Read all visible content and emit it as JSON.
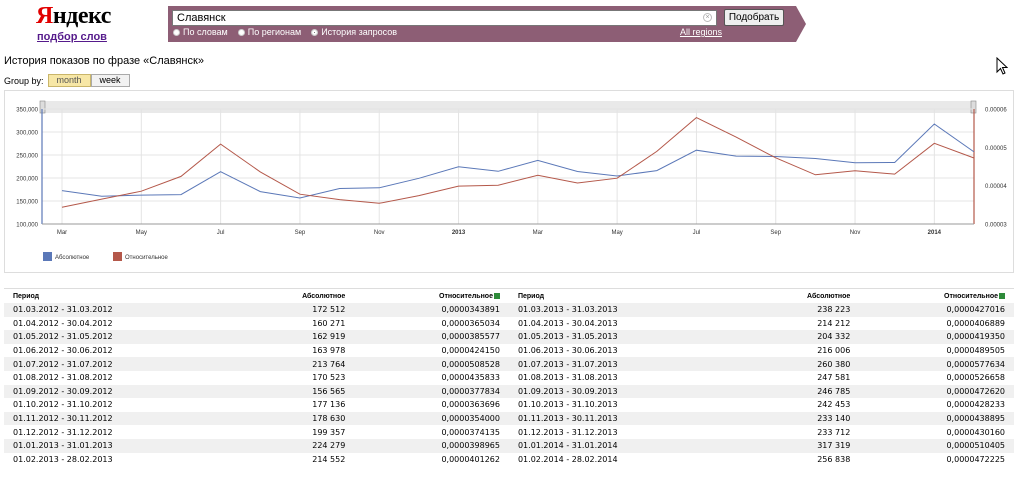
{
  "header": {
    "logo_first": "Я",
    "logo_rest": "ндекс",
    "logo_sub": "подбор слов",
    "search_value": "Славянск",
    "search_button": "Подобрать",
    "radios": [
      {
        "label": "По словам",
        "selected": false
      },
      {
        "label": "По регионам",
        "selected": false
      },
      {
        "label": "История запросов",
        "selected": true
      }
    ],
    "all_regions": "All regions",
    "bar_color": "#8d5e75"
  },
  "page": {
    "title": "История показов по фразе «Славянск»",
    "group_by_label": "Group by:",
    "group_month": "month",
    "group_week": "week"
  },
  "chart_data": {
    "type": "line",
    "x": [
      "03.2012",
      "04.2012",
      "05.2012",
      "06.2012",
      "07.2012",
      "08.2012",
      "09.2012",
      "10.2012",
      "11.2012",
      "12.2012",
      "01.2013",
      "02.2013",
      "03.2013",
      "04.2013",
      "05.2013",
      "06.2013",
      "07.2013",
      "08.2013",
      "09.2013",
      "10.2013",
      "11.2013",
      "12.2013",
      "01.2014",
      "02.2014"
    ],
    "x_tick_labels": [
      "Mar",
      "May",
      "Jul",
      "Sep",
      "Nov",
      "2013",
      "Mar",
      "May",
      "Jul",
      "Sep",
      "Nov",
      "2014"
    ],
    "y_left_ticks": [
      "100,000",
      "150,000",
      "200,000",
      "250,000",
      "300,000",
      "350,000"
    ],
    "y_right_ticks": [
      "0.00003",
      "0.00004",
      "0.00005",
      "0.00006"
    ],
    "ylim_left": [
      100000,
      350000
    ],
    "ylim_right": [
      3e-05,
      6e-05
    ],
    "series": [
      {
        "name": "Абсолютное",
        "color": "#5b78b8",
        "axis": "left",
        "values": [
          172512,
          160271,
          162919,
          163978,
          213764,
          170523,
          156565,
          177136,
          178630,
          199357,
          224279,
          214552,
          238223,
          214212,
          204332,
          216006,
          260380,
          247581,
          246785,
          242453,
          233140,
          233712,
          317319,
          256838
        ]
      },
      {
        "name": "Относительное",
        "color": "#b4584a",
        "axis": "right",
        "values": [
          3.43891e-05,
          3.65034e-05,
          3.85577e-05,
          4.2415e-05,
          5.08528e-05,
          4.35833e-05,
          3.77834e-05,
          3.63696e-05,
          3.54e-05,
          3.74135e-05,
          3.98965e-05,
          4.01262e-05,
          4.27016e-05,
          4.06889e-05,
          4.1935e-05,
          4.89505e-05,
          5.77634e-05,
          5.26658e-05,
          4.7262e-05,
          4.28233e-05,
          4.38895e-05,
          4.3016e-05,
          5.10405e-05,
          4.72225e-05
        ]
      }
    ],
    "grid": true,
    "legend_position": "bottom-left"
  },
  "table": {
    "headers": [
      "Период",
      "Абсолютное",
      "Относительное"
    ],
    "left": [
      [
        "01.03.2012 - 31.03.2012",
        "172 512",
        "0,0000343891"
      ],
      [
        "01.04.2012 - 30.04.2012",
        "160 271",
        "0,0000365034"
      ],
      [
        "01.05.2012 - 31.05.2012",
        "162 919",
        "0,0000385577"
      ],
      [
        "01.06.2012 - 30.06.2012",
        "163 978",
        "0,0000424150"
      ],
      [
        "01.07.2012 - 31.07.2012",
        "213 764",
        "0,0000508528"
      ],
      [
        "01.08.2012 - 31.08.2012",
        "170 523",
        "0,0000435833"
      ],
      [
        "01.09.2012 - 30.09.2012",
        "156 565",
        "0,0000377834"
      ],
      [
        "01.10.2012 - 31.10.2012",
        "177 136",
        "0,0000363696"
      ],
      [
        "01.11.2012 - 30.11.2012",
        "178 630",
        "0,0000354000"
      ],
      [
        "01.12.2012 - 31.12.2012",
        "199 357",
        "0,0000374135"
      ],
      [
        "01.01.2013 - 31.01.2013",
        "224 279",
        "0,0000398965"
      ],
      [
        "01.02.2013 - 28.02.2013",
        "214 552",
        "0,0000401262"
      ]
    ],
    "right": [
      [
        "01.03.2013 - 31.03.2013",
        "238 223",
        "0,0000427016"
      ],
      [
        "01.04.2013 - 30.04.2013",
        "214 212",
        "0,0000406889"
      ],
      [
        "01.05.2013 - 31.05.2013",
        "204 332",
        "0,0000419350"
      ],
      [
        "01.06.2013 - 30.06.2013",
        "216 006",
        "0,0000489505"
      ],
      [
        "01.07.2013 - 31.07.2013",
        "260 380",
        "0,0000577634"
      ],
      [
        "01.08.2013 - 31.08.2013",
        "247 581",
        "0,0000526658"
      ],
      [
        "01.09.2013 - 30.09.2013",
        "246 785",
        "0,0000472620"
      ],
      [
        "01.10.2013 - 31.10.2013",
        "242 453",
        "0,0000428233"
      ],
      [
        "01.11.2013 - 30.11.2013",
        "233 140",
        "0,0000438895"
      ],
      [
        "01.12.2013 - 31.12.2013",
        "233 712",
        "0,0000430160"
      ],
      [
        "01.01.2014 - 31.01.2014",
        "317 319",
        "0,0000510405"
      ],
      [
        "01.02.2014 - 28.02.2014",
        "256 838",
        "0,0000472225"
      ]
    ]
  }
}
